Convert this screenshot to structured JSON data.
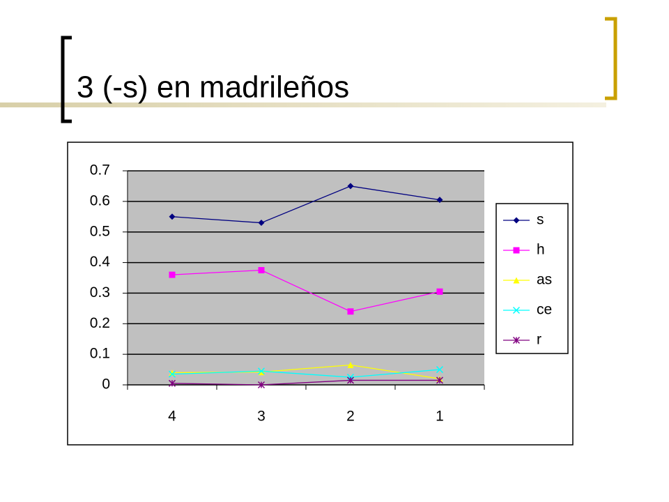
{
  "chart_data": {
    "type": "line",
    "title": "3 (-s) en madrileños",
    "categories": [
      "4",
      "3",
      "2",
      "1"
    ],
    "series": [
      {
        "name": "s",
        "color": "#000080",
        "marker": "diamond",
        "values": [
          0.55,
          0.53,
          0.65,
          0.605
        ]
      },
      {
        "name": "h",
        "color": "#ff00ff",
        "marker": "square",
        "values": [
          0.36,
          0.375,
          0.24,
          0.305
        ]
      },
      {
        "name": "as",
        "color": "#ffff00",
        "marker": "triangle",
        "values": [
          0.04,
          0.042,
          0.065,
          0.02
        ]
      },
      {
        "name": "ce",
        "color": "#00ffff",
        "marker": "x",
        "values": [
          0.035,
          0.045,
          0.025,
          0.05
        ]
      },
      {
        "name": "r",
        "color": "#800080",
        "marker": "star",
        "values": [
          0.005,
          0.0,
          0.015,
          0.015
        ]
      }
    ],
    "ylim": [
      0,
      0.7
    ],
    "yticks": [
      0,
      0.1,
      0.2,
      0.3,
      0.4,
      0.5,
      0.6,
      0.7
    ],
    "grid": true,
    "legend": "right"
  }
}
